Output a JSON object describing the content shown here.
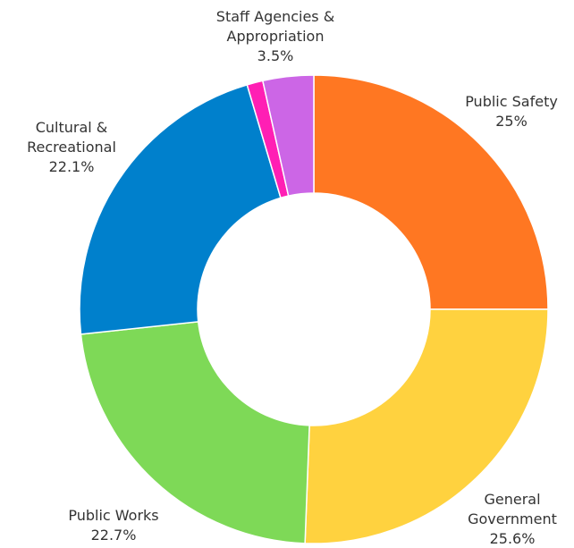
{
  "chart_data": {
    "type": "donut",
    "categories": [
      "Public Safety",
      "General Government",
      "Public Works",
      "Cultural & Recreational",
      null,
      "Staff Agencies & Appropriation"
    ],
    "values": [
      25,
      25.6,
      22.7,
      22.1,
      1.1,
      3.5
    ],
    "value_labels": [
      "25%",
      "25.6%",
      "22.7%",
      "22.1%",
      null,
      "3.5%"
    ],
    "colors": [
      "#ff7722",
      "#ffd23f",
      "#7ed957",
      "#0080cc",
      "#ff1fb4",
      "#cc66e6"
    ]
  }
}
